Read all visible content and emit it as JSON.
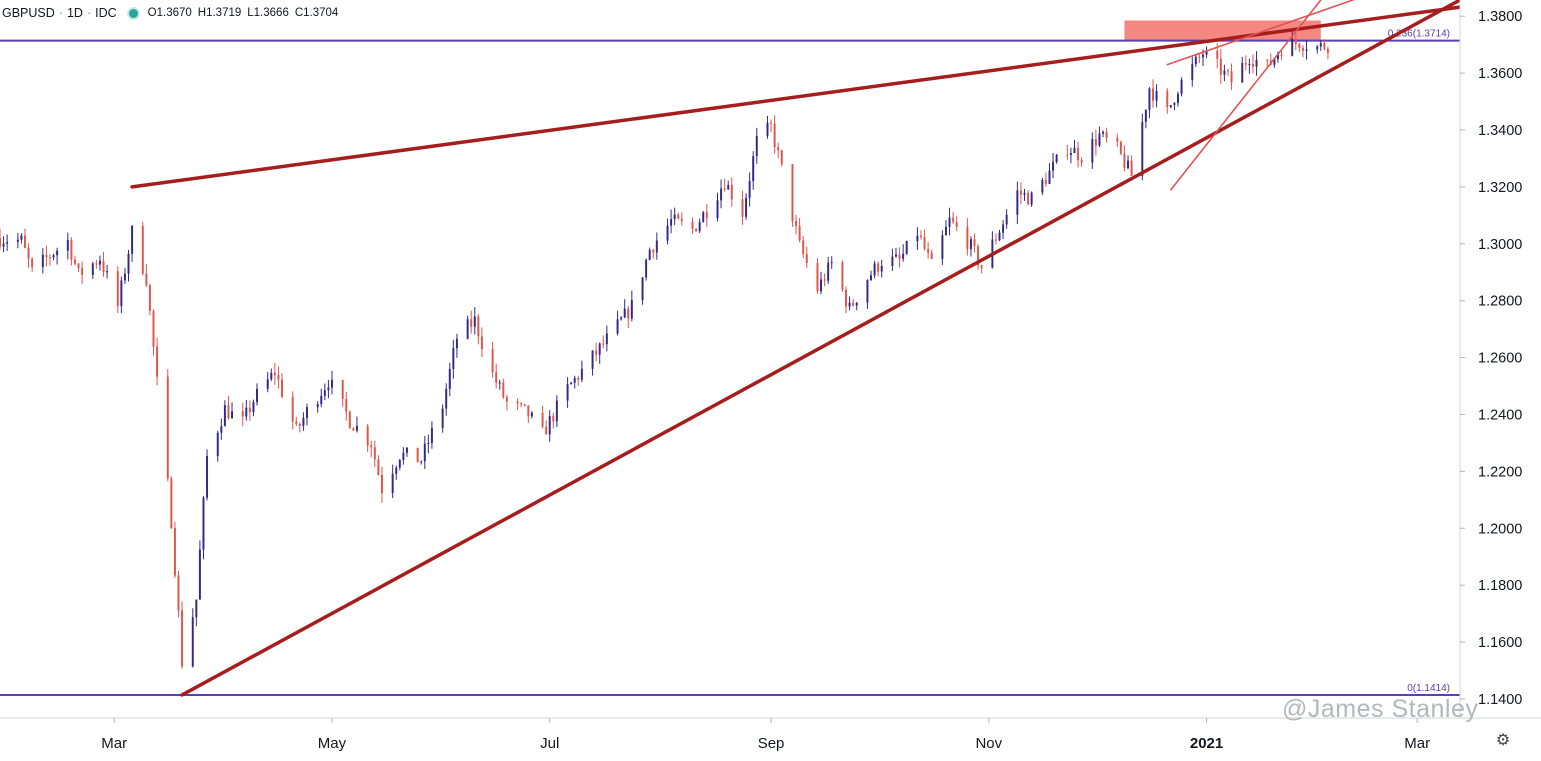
{
  "legend": {
    "symbol": "GBPUSD",
    "interval": "1D",
    "source": "IDC",
    "open": "O1.3670",
    "high": "H1.3719",
    "low": "L1.3666",
    "close": "C1.3704",
    "status_color": "#26a69a"
  },
  "watermark": "@James Stanley",
  "settings_icon": "gear-icon",
  "colors": {
    "up_candle": "#2f2a8a",
    "down_candle": "#e0554a",
    "trendline": "#a61d1d",
    "minor_trendline": "#e45353",
    "fib_line": "#5b3fb4",
    "resistance_zone": "#f2726b",
    "axis_text": "#131722"
  },
  "chart_data": {
    "type": "candlestick",
    "symbol": "GBPUSD",
    "ylim": [
      1.1333,
      1.3857
    ],
    "x_start": "2020-01-29",
    "x_end": "2021-03-13",
    "y_ticks": [
      "1.3800",
      "1.3600",
      "1.3400",
      "1.3200",
      "1.3000",
      "1.2800",
      "1.2600",
      "1.2400",
      "1.2200",
      "1.2000",
      "1.1800",
      "1.1600",
      "1.1400"
    ],
    "x_ticks": [
      {
        "label": "Mar",
        "date": "2020-03-01"
      },
      {
        "label": "May",
        "date": "2020-05-01"
      },
      {
        "label": "Jul",
        "date": "2020-07-01"
      },
      {
        "label": "Sep",
        "date": "2020-09-01"
      },
      {
        "label": "Nov",
        "date": "2020-11-01"
      },
      {
        "label": "2021",
        "date": "2021-01-01",
        "bold": true
      },
      {
        "label": "Mar",
        "date": "2021-03-01"
      }
    ],
    "fib_levels": [
      {
        "label": "0.236(1.3714)",
        "value": 1.3714
      },
      {
        "label": "0(1.1414)",
        "value": 1.1414
      }
    ],
    "resistance_zone": {
      "x0": "2020-12-09",
      "x1": "2021-02-02",
      "y0": 1.3714,
      "y1": 1.3785
    },
    "trendlines": [
      {
        "kind": "major",
        "from": {
          "date": "2020-03-06",
          "value": 1.32
        },
        "to": {
          "date": "2021-03-13",
          "value": 1.3832
        }
      },
      {
        "kind": "major",
        "from": {
          "date": "2020-03-20",
          "value": 1.1414
        },
        "to": {
          "date": "2021-03-13",
          "value": 1.3857
        }
      },
      {
        "kind": "minor",
        "from": {
          "date": "2020-12-21",
          "value": 1.363
        },
        "to": {
          "date": "2021-02-11",
          "value": 1.3857
        }
      },
      {
        "kind": "minor",
        "from": {
          "date": "2020-12-22",
          "value": 1.319
        },
        "to": {
          "date": "2021-02-02",
          "value": 1.3857
        }
      }
    ],
    "close_path": [
      [
        "2020-01-29",
        1.302
      ],
      [
        "2020-02-04",
        1.301
      ],
      [
        "2020-02-07",
        1.29
      ],
      [
        "2020-02-12",
        1.296
      ],
      [
        "2020-02-17",
        1.301
      ],
      [
        "2020-02-20",
        1.289
      ],
      [
        "2020-02-26",
        1.295
      ],
      [
        "2020-03-02",
        1.278
      ],
      [
        "2020-03-06",
        1.304
      ],
      [
        "2020-03-10",
        1.288
      ],
      [
        "2020-03-13",
        1.251
      ],
      [
        "2020-03-17",
        1.203
      ],
      [
        "2020-03-20",
        1.153
      ],
      [
        "2020-03-24",
        1.175
      ],
      [
        "2020-03-27",
        1.225
      ],
      [
        "2020-04-01",
        1.242
      ],
      [
        "2020-04-06",
        1.237
      ],
      [
        "2020-04-09",
        1.245
      ],
      [
        "2020-04-15",
        1.255
      ],
      [
        "2020-04-21",
        1.234
      ],
      [
        "2020-04-24",
        1.241
      ],
      [
        "2020-04-30",
        1.252
      ],
      [
        "2020-05-06",
        1.238
      ],
      [
        "2020-05-12",
        1.23
      ],
      [
        "2020-05-15",
        1.214
      ],
      [
        "2020-05-20",
        1.226
      ],
      [
        "2020-05-26",
        1.224
      ],
      [
        "2020-06-01",
        1.243
      ],
      [
        "2020-06-05",
        1.267
      ],
      [
        "2020-06-10",
        1.273
      ],
      [
        "2020-06-15",
        1.254
      ],
      [
        "2020-06-19",
        1.244
      ],
      [
        "2020-06-25",
        1.24
      ],
      [
        "2020-06-29",
        1.233
      ],
      [
        "2020-07-06",
        1.249
      ],
      [
        "2020-07-13",
        1.26
      ],
      [
        "2020-07-20",
        1.271
      ],
      [
        "2020-07-24",
        1.278
      ],
      [
        "2020-07-29",
        1.298
      ],
      [
        "2020-08-04",
        1.308
      ],
      [
        "2020-08-10",
        1.305
      ],
      [
        "2020-08-14",
        1.312
      ],
      [
        "2020-08-19",
        1.322
      ],
      [
        "2020-08-24",
        1.311
      ],
      [
        "2020-08-28",
        1.336
      ],
      [
        "2020-09-01",
        1.341
      ],
      [
        "2020-09-04",
        1.326
      ],
      [
        "2020-09-09",
        1.299
      ],
      [
        "2020-09-14",
        1.284
      ],
      [
        "2020-09-18",
        1.293
      ],
      [
        "2020-09-23",
        1.277
      ],
      [
        "2020-09-28",
        1.288
      ],
      [
        "2020-10-02",
        1.294
      ],
      [
        "2020-10-07",
        1.294
      ],
      [
        "2020-10-12",
        1.304
      ],
      [
        "2020-10-16",
        1.292
      ],
      [
        "2020-10-21",
        1.308
      ],
      [
        "2020-10-26",
        1.301
      ],
      [
        "2020-10-30",
        1.292
      ],
      [
        "2020-11-04",
        1.305
      ],
      [
        "2020-11-09",
        1.318
      ],
      [
        "2020-11-13",
        1.316
      ],
      [
        "2020-11-18",
        1.325
      ],
      [
        "2020-11-23",
        1.334
      ],
      [
        "2020-11-27",
        1.331
      ],
      [
        "2020-12-02",
        1.338
      ],
      [
        "2020-12-07",
        1.333
      ],
      [
        "2020-12-11",
        1.324
      ],
      [
        "2020-12-16",
        1.355
      ],
      [
        "2020-12-21",
        1.346
      ],
      [
        "2020-12-24",
        1.355
      ],
      [
        "2020-12-31",
        1.367
      ],
      [
        "2021-01-05",
        1.361
      ],
      [
        "2021-01-08",
        1.357
      ],
      [
        "2021-01-13",
        1.366
      ],
      [
        "2021-01-18",
        1.362
      ],
      [
        "2021-01-22",
        1.369
      ],
      [
        "2021-01-27",
        1.371
      ],
      [
        "2021-02-01",
        1.369
      ],
      [
        "2021-02-04",
        1.37
      ]
    ]
  }
}
